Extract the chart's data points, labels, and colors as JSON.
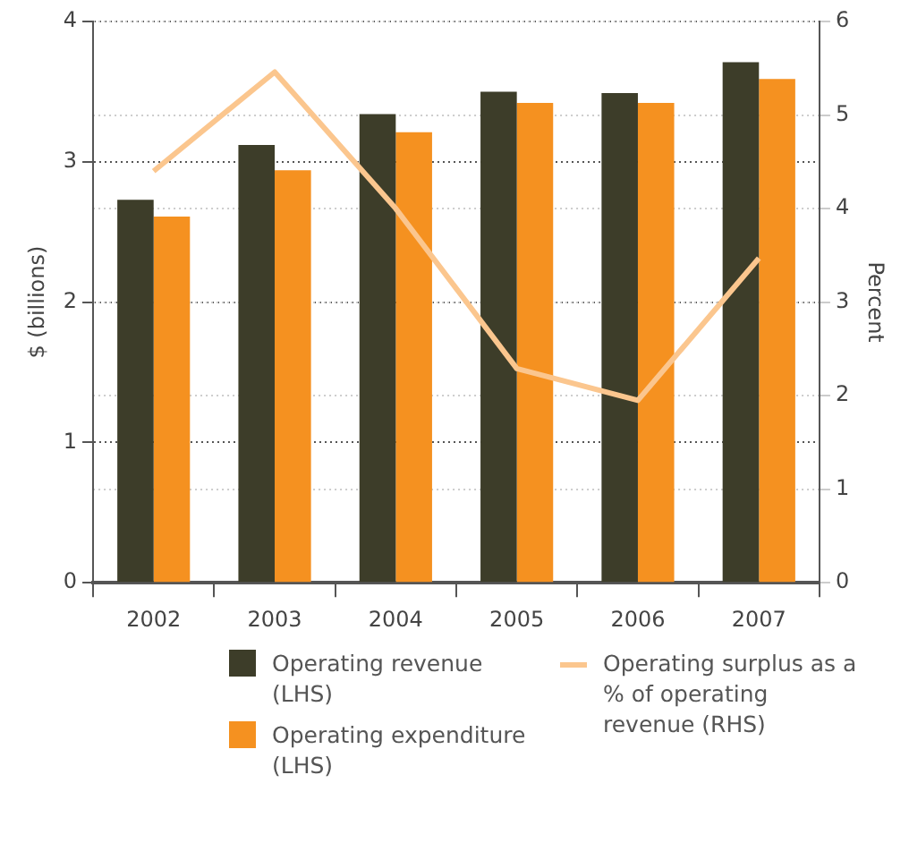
{
  "chart_data": {
    "type": "bar",
    "categories": [
      "2002",
      "2003",
      "2004",
      "2005",
      "2006",
      "2007"
    ],
    "series": [
      {
        "name": "Operating revenue (LHS)",
        "color": "#3d3d29",
        "values": [
          2.73,
          3.12,
          3.34,
          3.5,
          3.49,
          3.71
        ]
      },
      {
        "name": "Operating expenditure (LHS)",
        "color": "#f59120",
        "values": [
          2.61,
          2.94,
          3.21,
          3.42,
          3.42,
          3.59
        ]
      },
      {
        "name": "Operating surplus as a % of operating revenue (RHS)",
        "type": "line",
        "axis": "y2",
        "color": "#fbc68e",
        "values": [
          4.4,
          5.46,
          4.0,
          2.29,
          1.95,
          3.47
        ]
      }
    ],
    "ylabel": "$ (billions)",
    "y2label": "Percent",
    "ylim": [
      0,
      4
    ],
    "yticks": [
      0,
      1,
      2,
      3,
      4
    ],
    "y2lim": [
      0,
      6
    ],
    "y2ticks": [
      0,
      1,
      2,
      3,
      4,
      5,
      6
    ],
    "grid": true,
    "legend": "bottom",
    "marker": "none",
    "line_style": "solid"
  }
}
